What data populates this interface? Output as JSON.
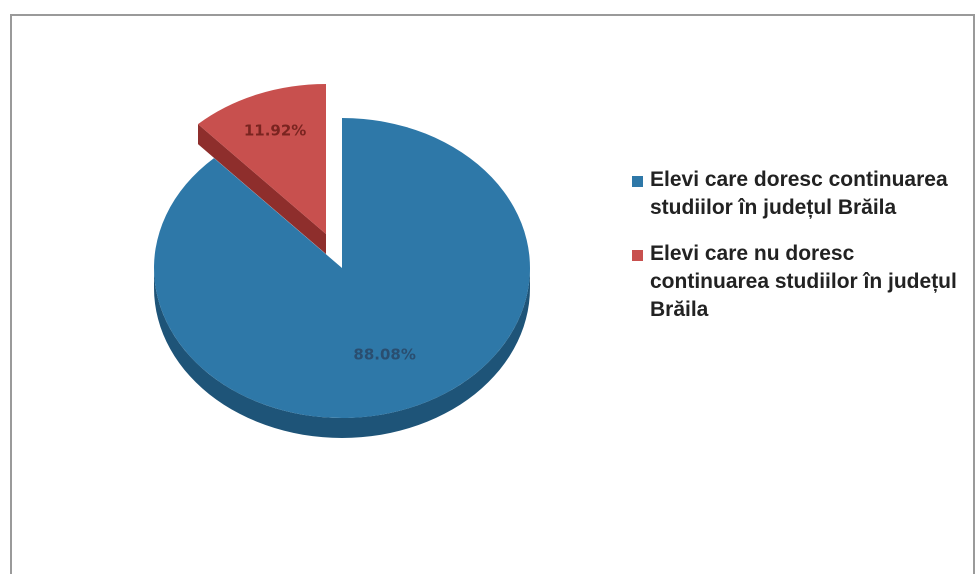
{
  "chart_data": {
    "type": "pie",
    "style": "3d-exploded",
    "slices": [
      {
        "label": "Elevi care doresc continuarea studiilor în județul Brăila",
        "value": 88.08,
        "value_label": "88.08%",
        "color": "#2E78A8",
        "side_color": "#1E5478",
        "label_color": "#2A4E70"
      },
      {
        "label": "Elevi care nu doresc continuarea studiilor în județul Brăila",
        "value": 11.92,
        "value_label": "11.92%",
        "color": "#C8504E",
        "side_color": "#8E2E2C",
        "label_color": "#7A2420"
      }
    ],
    "legend_position": "right"
  }
}
